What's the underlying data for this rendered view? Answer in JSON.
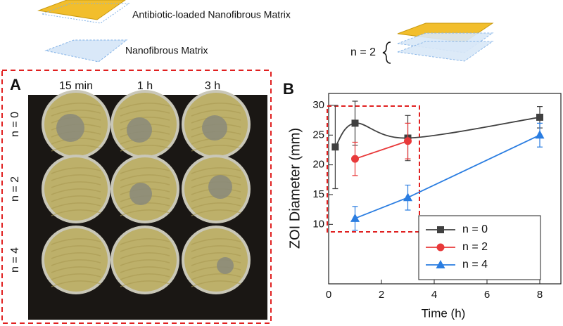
{
  "header": {
    "loaded_label": "Antibiotic-loaded Nanofibrous Matrix",
    "plain_label": "Nanofibrous Matrix",
    "stack_label": "n = 2"
  },
  "panel_a": {
    "label": "A",
    "columns": [
      "15 min",
      "1 h",
      "3 h"
    ],
    "rows": [
      "n = 0",
      "n = 2",
      "n = 4"
    ]
  },
  "chart_data": {
    "type": "line",
    "panel_label": "B",
    "xlabel": "Time (h)",
    "ylabel": "ZOI Diameter (mm)",
    "x": [
      0.25,
      1,
      3,
      8
    ],
    "series": [
      {
        "name": "n = 0",
        "color": "#404040",
        "marker": "square",
        "smooth": true,
        "values": [
          23,
          27,
          24.5,
          28
        ],
        "errors": [
          7,
          3.7,
          3.8,
          1.8
        ]
      },
      {
        "name": "n = 2",
        "color": "#e8393a",
        "marker": "circle",
        "smooth": false,
        "values": [
          null,
          21,
          24,
          null
        ],
        "errors": [
          null,
          2.8,
          3,
          null
        ]
      },
      {
        "name": "n = 4",
        "color": "#2a7de1",
        "marker": "triangle",
        "smooth": false,
        "values": [
          null,
          11,
          14.5,
          25
        ],
        "errors": [
          null,
          2,
          2.1,
          2
        ]
      }
    ],
    "xlim": [
      0,
      8.8
    ],
    "xticks": [
      0,
      2,
      4,
      6,
      8
    ],
    "ylim": [
      0,
      32
    ],
    "yticks": [
      10,
      15,
      20,
      25,
      30
    ]
  }
}
